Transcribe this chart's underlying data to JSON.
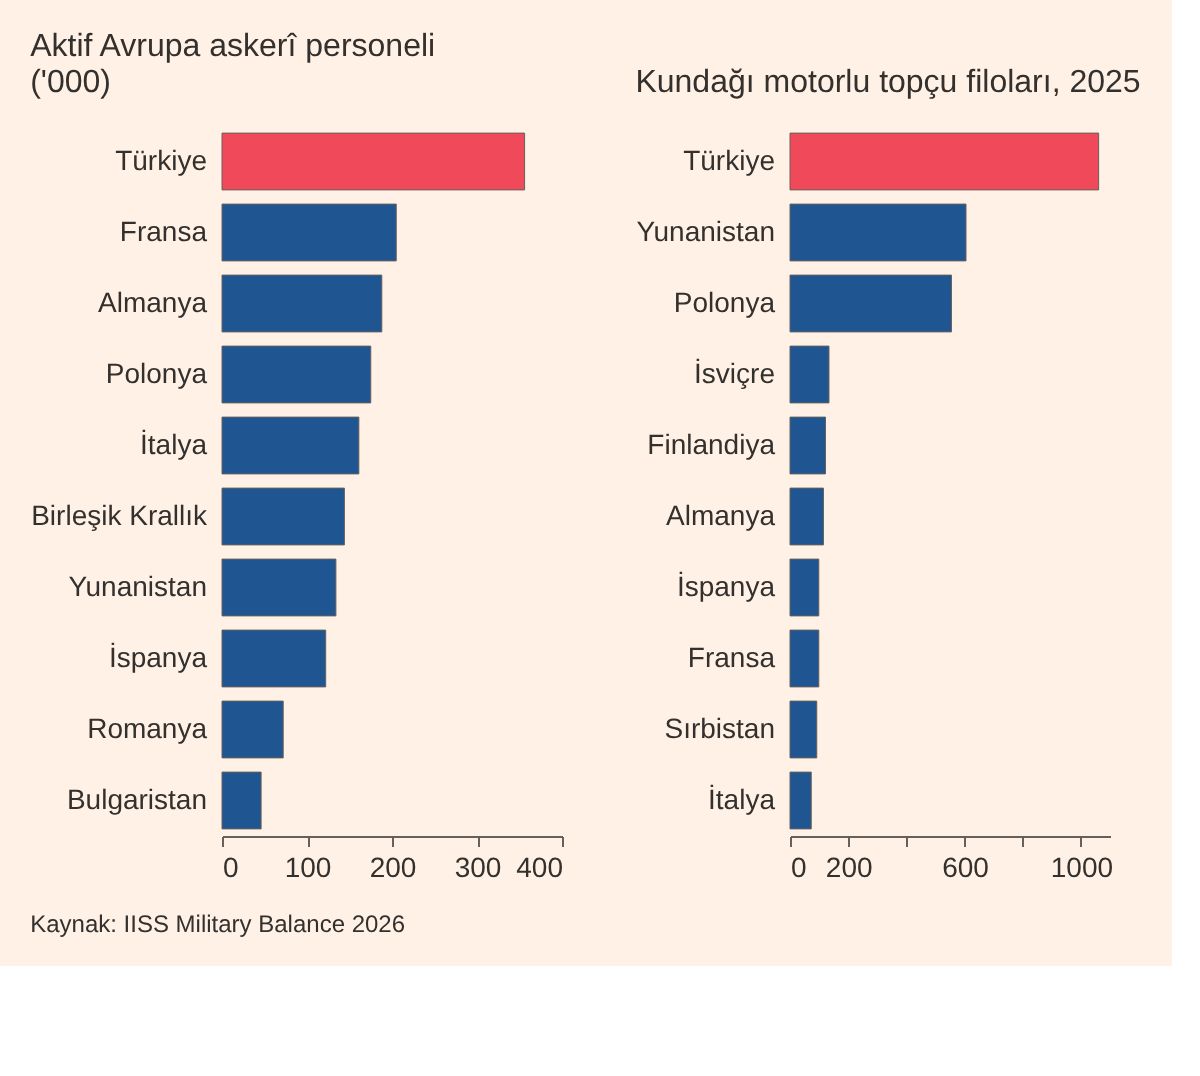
{
  "chart_data": [
    {
      "type": "bar",
      "orientation": "horizontal",
      "title": "Aktif Avrupa askerî personeli ('000)",
      "categories": [
        "Türkiye",
        "Fransa",
        "Almanya",
        "Polonya",
        "İtalya",
        "Birleşik Krallık",
        "Yunanistan",
        "İspanya",
        "Romanya",
        "Bulgaristan"
      ],
      "values": [
        356,
        205,
        188,
        175,
        161,
        144,
        134,
        122,
        72,
        46
      ],
      "colors": [
        "#f04a5a",
        "#1f5591",
        "#1f5591",
        "#1f5591",
        "#1f5591",
        "#1f5591",
        "#1f5591",
        "#1f5591",
        "#1f5591",
        "#1f5591"
      ],
      "xlim": [
        0,
        400
      ],
      "xticks": [
        0,
        100,
        200,
        300,
        400
      ],
      "grid": false,
      "annotations": [
        "Kaynak: IISS Military Balance 2026"
      ]
    },
    {
      "type": "bar",
      "orientation": "horizontal",
      "title": "Kundağı motorlu topçu filoları, 2025",
      "categories": [
        "Türkiye",
        "Yunanistan",
        "Polonya",
        "İsviçre",
        "Finlandiya",
        "Almanya",
        "İspanya",
        "Fransa",
        "Sırbistan",
        "İtalya"
      ],
      "values": [
        1061,
        605,
        555,
        134,
        122,
        115,
        99,
        99,
        92,
        73
      ],
      "colors": [
        "#f04a5a",
        "#1f5591",
        "#1f5591",
        "#1f5591",
        "#1f5591",
        "#1f5591",
        "#1f5591",
        "#1f5591",
        "#1f5591",
        "#1f5591"
      ],
      "xlim": [
        0,
        1100
      ],
      "xticks": [
        0,
        200,
        {
          "value": 400,
          "label": null
        },
        600,
        {
          "value": 800,
          "label": null
        },
        1000
      ],
      "grid": false
    }
  ]
}
